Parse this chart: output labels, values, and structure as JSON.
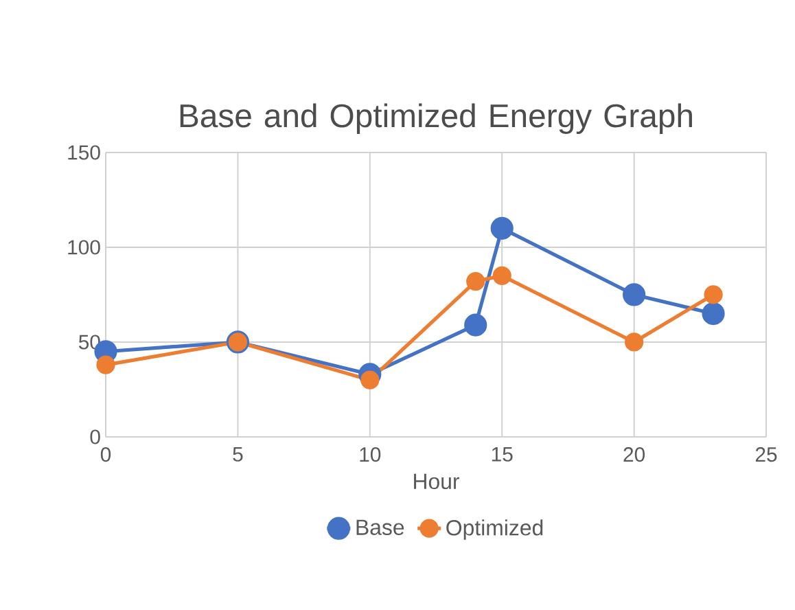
{
  "chart_data": {
    "type": "line",
    "title": "Base and Optimized Energy Graph",
    "xlabel": "Hour",
    "x": [
      0,
      5,
      10,
      14,
      15,
      20,
      23
    ],
    "series": [
      {
        "name": "Base",
        "color": "#4472c4",
        "values": [
          45,
          50,
          33,
          59,
          110,
          75,
          65
        ]
      },
      {
        "name": "Optimized",
        "color": "#ed7d31",
        "values": [
          38,
          50,
          30,
          82,
          85,
          50,
          75
        ]
      }
    ],
    "xlim": [
      0,
      25
    ],
    "ylim": [
      0,
      150
    ],
    "xticks": [
      0,
      5,
      10,
      15,
      20,
      25
    ],
    "yticks": [
      0,
      50,
      100,
      150
    ],
    "grid": true,
    "legend": "bottom",
    "marker": "circle"
  }
}
